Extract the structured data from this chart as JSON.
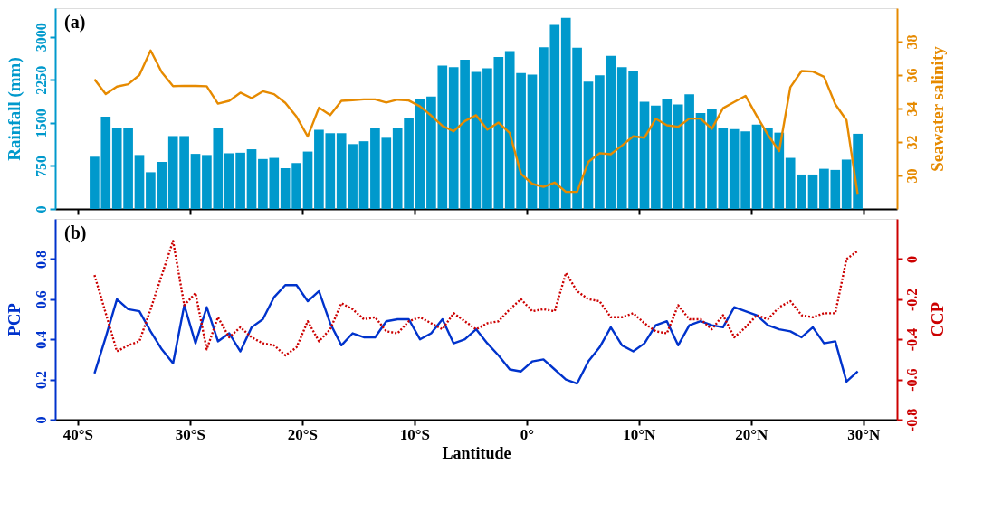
{
  "chart_data": [
    {
      "type": "bar",
      "annotations": [
        "(a)"
      ],
      "ylabel": "Rainfall (mm)",
      "y2label": "Seawater salinity",
      "x": [
        -38.5,
        -37.5,
        -36.5,
        -35.5,
        -34.5,
        -33.5,
        -32.5,
        -31.5,
        -30.5,
        -29.5,
        -28.5,
        -27.5,
        -26.5,
        -25.5,
        -24.5,
        -23.5,
        -22.5,
        -21.5,
        -20.5,
        -19.5,
        -18.5,
        -17.5,
        -16.5,
        -15.5,
        -14.5,
        -13.5,
        -12.5,
        -11.5,
        -10.5,
        -9.5,
        -8.5,
        -7.5,
        -6.5,
        -5.5,
        -4.5,
        -3.5,
        -2.5,
        -1.5,
        -0.5,
        0.5,
        1.5,
        2.5,
        3.5,
        4.5,
        5.5,
        6.5,
        7.5,
        8.5,
        9.5,
        10.5,
        11.5,
        12.5,
        13.5,
        14.5,
        15.5,
        16.5,
        17.5,
        18.5,
        19.5,
        20.5,
        21.5,
        22.5,
        23.5,
        24.5,
        25.5,
        26.5,
        27.5,
        28.5,
        29.5
      ],
      "xlim": [
        -42,
        33
      ],
      "xticks": [
        -40,
        -30,
        -20,
        -10,
        0,
        10,
        20,
        30
      ],
      "ylim": [
        0,
        3500
      ],
      "yticks": [
        0,
        750,
        1500,
        2250,
        3000
      ],
      "y2lim": [
        28,
        40
      ],
      "y2ticks": [
        30,
        32,
        34,
        36,
        38
      ],
      "tick_labels": "y",
      "grid": false,
      "series": [
        {
          "color": "#0099cc",
          "values": [
            910,
            1610,
            1410,
            1410,
            940,
            640,
            820,
            1270,
            1270,
            960,
            940,
            1420,
            970,
            980,
            1040,
            870,
            890,
            710,
            800,
            1000,
            1380,
            1320,
            1320,
            1130,
            1180,
            1410,
            1240,
            1410,
            1590,
            1910,
            1960,
            2500,
            2470,
            2600,
            2390,
            2450,
            2650,
            2750,
            2370,
            2340,
            2820,
            3210,
            3330,
            2810,
            2220,
            2330,
            2670,
            2470,
            2410,
            1870,
            1800,
            1920,
            1820,
            2000,
            1670,
            1740,
            1410,
            1390,
            1350,
            1470,
            1410,
            1330,
            890,
            600,
            600,
            700,
            680,
            860,
            1310
          ]
        },
        {
          "type": "line",
          "axis": "y2",
          "color": "#e68a00",
          "values": [
            35.74,
            34.86,
            35.31,
            35.45,
            36.0,
            37.47,
            36.16,
            35.34,
            35.36,
            35.35,
            35.33,
            34.29,
            34.46,
            34.95,
            34.62,
            35.03,
            34.86,
            34.34,
            33.51,
            32.33,
            34.05,
            33.61,
            34.46,
            34.5,
            34.55,
            34.55,
            34.36,
            34.53,
            34.48,
            34.13,
            33.58,
            32.96,
            32.64,
            33.25,
            33.6,
            32.74,
            33.16,
            32.53,
            30.1,
            29.5,
            29.32,
            29.58,
            29.02,
            29.02,
            30.81,
            31.33,
            31.27,
            31.79,
            32.34,
            32.26,
            33.39,
            33.0,
            32.91,
            33.4,
            33.4,
            32.79,
            34.02,
            34.39,
            34.76,
            33.56,
            32.42,
            31.46,
            35.28,
            36.24,
            36.21,
            35.9,
            34.26,
            33.3,
            28.85
          ]
        }
      ]
    },
    {
      "type": "line",
      "annotations": [
        "(b)"
      ],
      "xlabel": "Lantitude",
      "ylabel": "PCP",
      "y2label": "CCP",
      "x": [
        -38.5,
        -37.5,
        -36.5,
        -35.5,
        -34.5,
        -33.5,
        -32.5,
        -31.5,
        -30.5,
        -29.5,
        -28.5,
        -27.5,
        -26.5,
        -25.5,
        -24.5,
        -23.5,
        -22.5,
        -21.5,
        -20.5,
        -19.5,
        -18.5,
        -17.5,
        -16.5,
        -15.5,
        -14.5,
        -13.5,
        -12.5,
        -11.5,
        -10.5,
        -9.5,
        -8.5,
        -7.5,
        -6.5,
        -5.5,
        -4.5,
        -3.5,
        -2.5,
        -1.5,
        -0.5,
        0.5,
        1.5,
        2.5,
        3.5,
        4.5,
        5.5,
        6.5,
        7.5,
        8.5,
        9.5,
        10.5,
        11.5,
        12.5,
        13.5,
        14.5,
        15.5,
        16.5,
        17.5,
        18.5,
        19.5,
        20.5,
        21.5,
        22.5,
        23.5,
        24.5,
        25.5,
        26.5,
        27.5,
        28.5,
        29.5
      ],
      "xlim": [
        -42,
        33
      ],
      "xticks": [
        {
          "value": -40,
          "label": "40°S"
        },
        {
          "value": -30,
          "label": "30°S"
        },
        {
          "value": -20,
          "label": "20°S"
        },
        {
          "value": -10,
          "label": "10°S"
        },
        {
          "value": 0,
          "label": "0°"
        },
        {
          "value": 10,
          "label": "10°N"
        },
        {
          "value": 20,
          "label": "20°N"
        },
        {
          "value": 30,
          "label": "30°N"
        }
      ],
      "ylim": [
        0,
        1
      ],
      "yticks": [
        0,
        0.2,
        0.4,
        0.6,
        0.8
      ],
      "y2lim": [
        -0.8,
        0.2
      ],
      "y2ticks": [
        -0.8,
        -0.6,
        -0.4,
        -0.2,
        0
      ],
      "grid": false,
      "series": [
        {
          "color": "#0033cc",
          "values": [
            0.23,
            0.41,
            0.6,
            0.55,
            0.54,
            0.44,
            0.35,
            0.28,
            0.57,
            0.38,
            0.56,
            0.39,
            0.43,
            0.34,
            0.46,
            0.5,
            0.61,
            0.67,
            0.67,
            0.59,
            0.64,
            0.48,
            0.37,
            0.43,
            0.41,
            0.41,
            0.49,
            0.5,
            0.5,
            0.4,
            0.43,
            0.5,
            0.38,
            0.4,
            0.45,
            0.38,
            0.32,
            0.25,
            0.24,
            0.29,
            0.3,
            0.25,
            0.2,
            0.18,
            0.29,
            0.36,
            0.46,
            0.37,
            0.34,
            0.38,
            0.47,
            0.49,
            0.37,
            0.47,
            0.49,
            0.47,
            0.46,
            0.56,
            0.54,
            0.52,
            0.47,
            0.45,
            0.44,
            0.41,
            0.46,
            0.38,
            0.39,
            0.19,
            0.24
          ]
        },
        {
          "axis": "y2",
          "color": "#cc0000",
          "line_style": "dotted",
          "values": [
            -0.08,
            -0.27,
            -0.46,
            -0.43,
            -0.41,
            -0.25,
            -0.08,
            0.09,
            -0.23,
            -0.17,
            -0.45,
            -0.29,
            -0.39,
            -0.34,
            -0.39,
            -0.42,
            -0.43,
            -0.48,
            -0.44,
            -0.31,
            -0.41,
            -0.35,
            -0.22,
            -0.25,
            -0.3,
            -0.29,
            -0.36,
            -0.37,
            -0.31,
            -0.29,
            -0.32,
            -0.35,
            -0.27,
            -0.31,
            -0.35,
            -0.32,
            -0.31,
            -0.25,
            -0.2,
            -0.26,
            -0.25,
            -0.26,
            -0.07,
            -0.16,
            -0.2,
            -0.21,
            -0.29,
            -0.29,
            -0.27,
            -0.32,
            -0.36,
            -0.37,
            -0.23,
            -0.3,
            -0.3,
            -0.35,
            -0.28,
            -0.39,
            -0.34,
            -0.28,
            -0.3,
            -0.24,
            -0.21,
            -0.28,
            -0.29,
            -0.27,
            -0.27,
            0.0,
            0.04
          ]
        }
      ]
    }
  ]
}
